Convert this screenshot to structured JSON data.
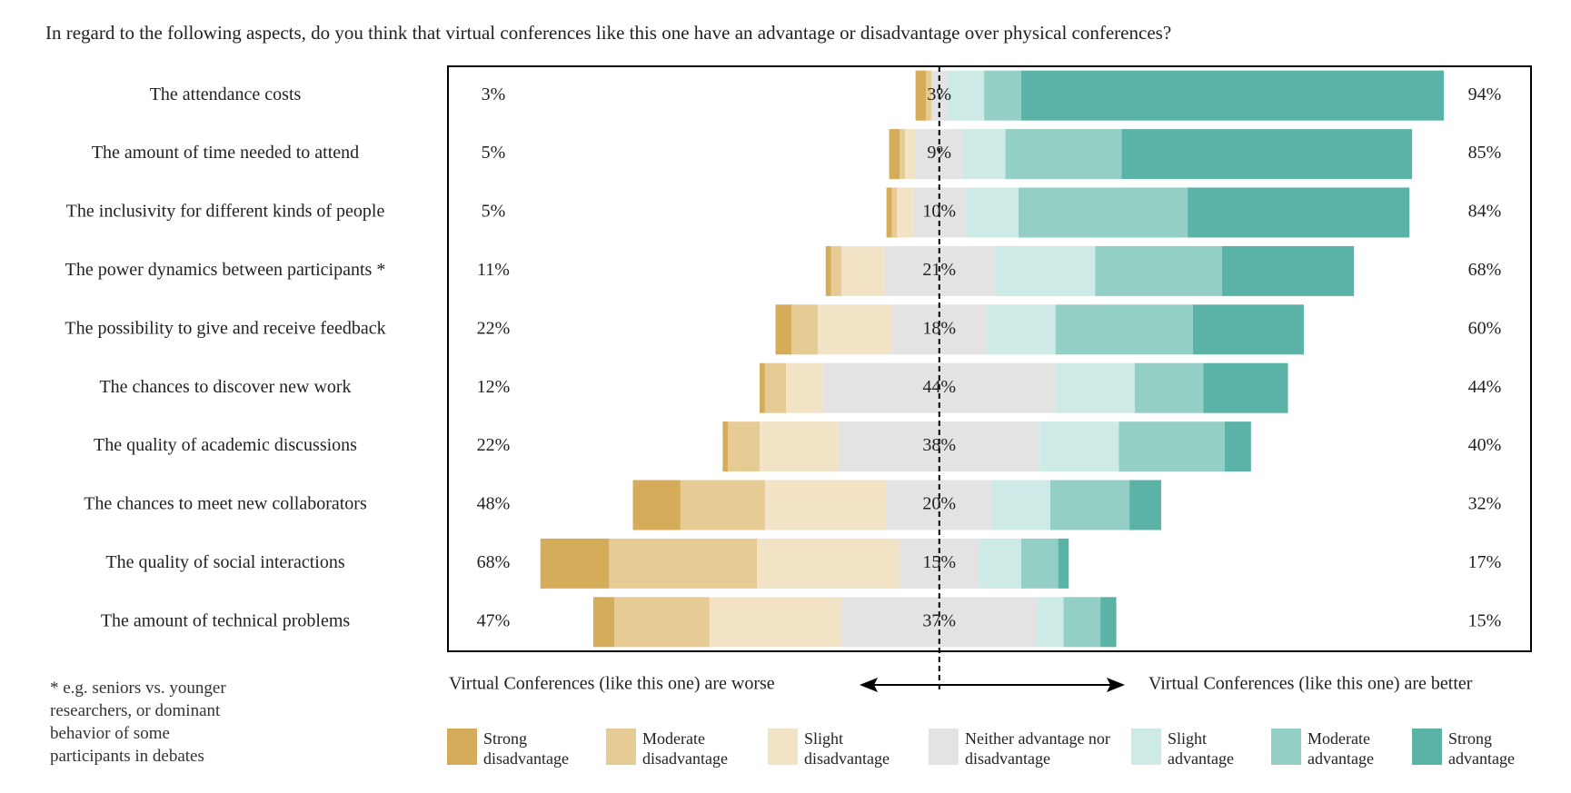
{
  "chart_data": {
    "type": "diverging_bar",
    "title": "In regard to the following aspects, do you think that virtual conferences like this one have an advantage or disadvantage over physical conferences?",
    "categories": [
      "The attendance costs",
      "The amount of time needed to attend",
      "The inclusivity for different kinds of people",
      "The power dynamics between participants *",
      "The possibility to give and receive feedback",
      "The chances to discover new work",
      "The quality of academic discussions",
      "The chances to meet new collaborators",
      "The quality of social interactions",
      "The amount of technical problems"
    ],
    "series": [
      {
        "name": "Strong disadvantage",
        "color": "#d4ac5a",
        "side": "left",
        "values": [
          2,
          2,
          1,
          1,
          3,
          1,
          1,
          9,
          13,
          4
        ]
      },
      {
        "name": "Moderate disadvantage",
        "color": "#e6cb94",
        "side": "left",
        "values": [
          1,
          1,
          1,
          2,
          5,
          4,
          6,
          16,
          28,
          18
        ]
      },
      {
        "name": "Slight disadvantage",
        "color": "#f2e3c6",
        "side": "left",
        "values": [
          0,
          2,
          3,
          8,
          14,
          7,
          15,
          23,
          27,
          25
        ]
      },
      {
        "name": "Neither advantage nor disadvantage",
        "color": "#e3e3e3",
        "side": "center",
        "values": [
          3,
          9,
          10,
          21,
          18,
          44,
          38,
          20,
          15,
          37
        ],
        "value_labels": [
          "3%",
          "9%",
          "10%",
          "21%",
          "18%",
          "44%",
          "38%",
          "20%",
          "15%",
          "37%"
        ]
      },
      {
        "name": "Slight advantage",
        "color": "#cdeae6",
        "side": "right",
        "values": [
          7,
          8,
          10,
          19,
          13,
          15,
          15,
          11,
          8,
          5
        ]
      },
      {
        "name": "Moderate advantage",
        "color": "#93cfc5",
        "side": "right",
        "values": [
          7,
          22,
          32,
          24,
          26,
          13,
          20,
          15,
          7,
          7
        ]
      },
      {
        "name": "Strong advantage",
        "color": "#5bb3a8",
        "side": "right",
        "values": [
          80,
          55,
          42,
          25,
          21,
          16,
          5,
          6,
          2,
          3
        ]
      }
    ],
    "left_labels": [
      "3%",
      "5%",
      "5%",
      "11%",
      "22%",
      "12%",
      "22%",
      "48%",
      "68%",
      "47%"
    ],
    "right_labels": [
      "94%",
      "85%",
      "84%",
      "68%",
      "60%",
      "44%",
      "40%",
      "32%",
      "17%",
      "15%"
    ],
    "xlim": [
      -93,
      112
    ],
    "left_annotation": "Virtual Conferences (like this one) are worse",
    "right_annotation": "Virtual Conferences (like this one) are better",
    "footnote": [
      "* e.g. seniors vs. younger",
      "researchers, or dominant",
      "behavior of some",
      "participants in debates"
    ]
  }
}
